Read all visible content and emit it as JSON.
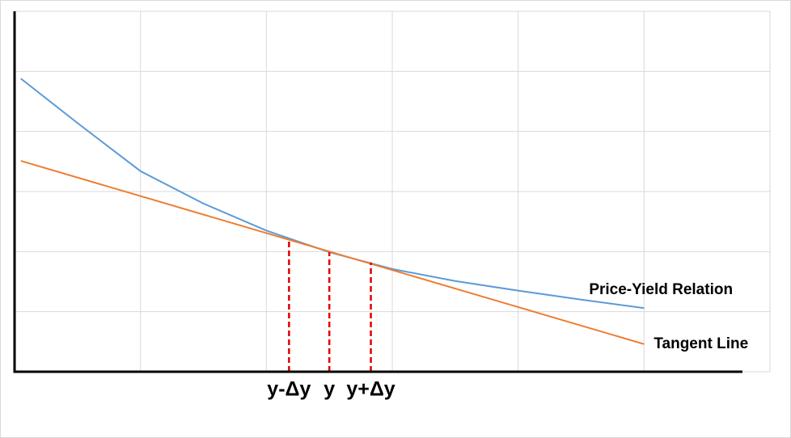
{
  "chart_data": {
    "type": "line",
    "xlim": [
      0,
      6
    ],
    "ylim": [
      0,
      6
    ],
    "xticks": [
      0,
      1,
      2,
      3,
      4,
      5,
      6
    ],
    "yticks": [
      0,
      1,
      2,
      3,
      4,
      5,
      6
    ],
    "grid": true,
    "series": [
      {
        "name": "Price-Yield Relation",
        "color": "#5b9bd5",
        "x": [
          0.05,
          0.5,
          1,
          1.5,
          2,
          2.5,
          3,
          3.5,
          4,
          4.5,
          5
        ],
        "values": [
          4.88,
          4.14,
          3.34,
          2.8,
          2.35,
          1.99,
          1.71,
          1.51,
          1.35,
          1.2,
          1.06
        ]
      },
      {
        "name": "Tangent Line",
        "color": "#ed7d31",
        "x": [
          0.05,
          5
        ],
        "values": [
          3.51,
          0.46
        ]
      }
    ],
    "markers": {
      "color": "#e00000",
      "labels": [
        "y-Δy",
        "y",
        "y+Δy"
      ],
      "x": [
        2.18,
        2.5,
        2.83
      ],
      "values": [
        2.21,
        1.99,
        1.82
      ]
    }
  }
}
